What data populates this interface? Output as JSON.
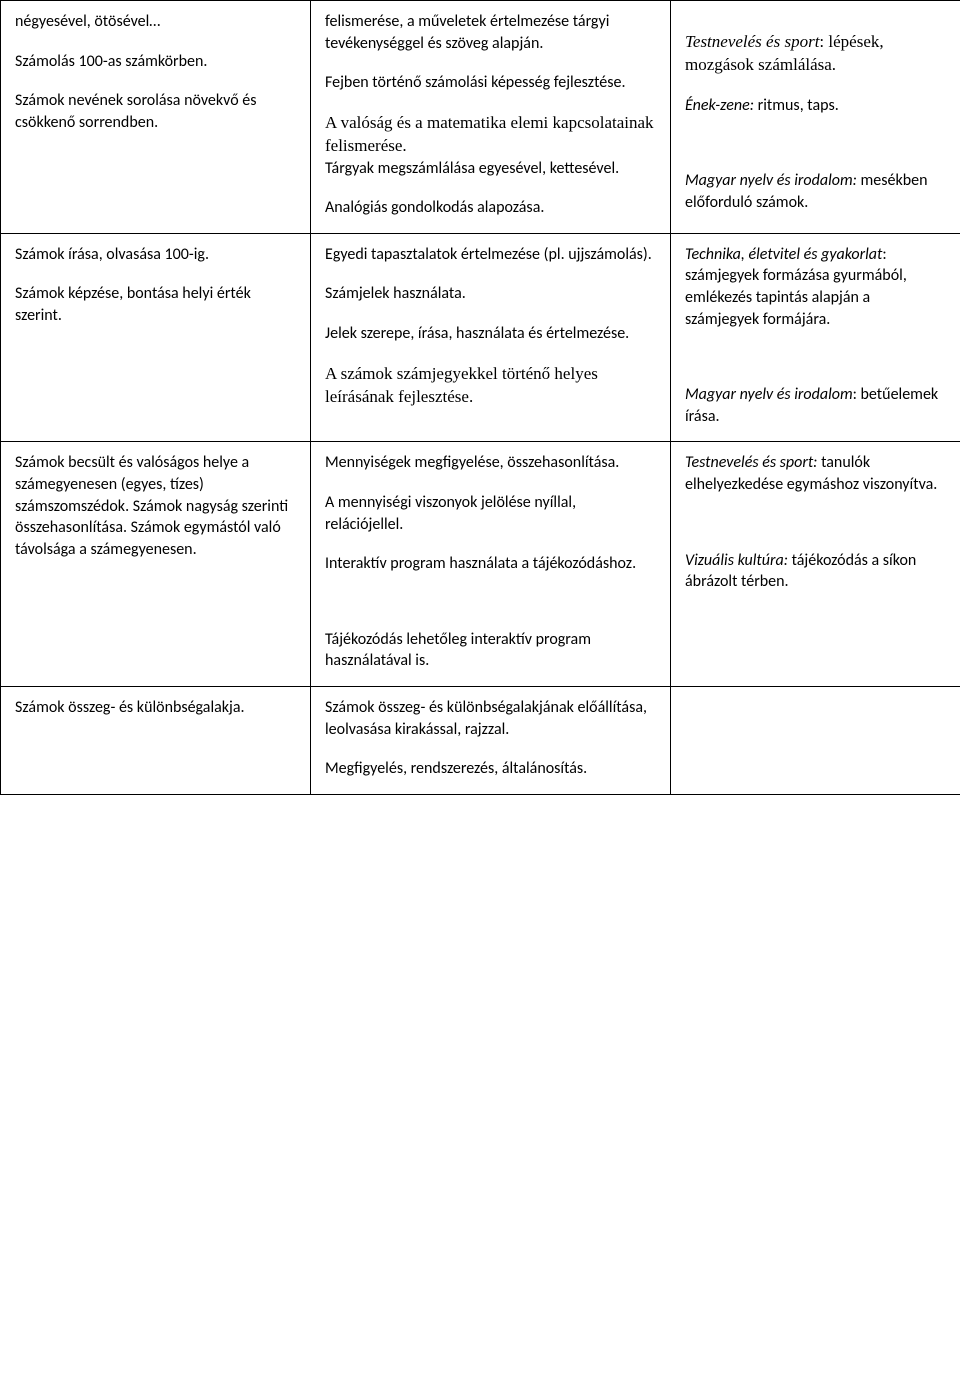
{
  "table": {
    "rows": [
      {
        "col1": [
          {
            "text": "négyesével, ötösével…",
            "cls": ""
          },
          {
            "text": "Számolás 100-as számkörben.",
            "cls": ""
          },
          {
            "text": "Számok nevének sorolása növekvő és csökkenő sorrendben.",
            "cls": ""
          }
        ],
        "col2": [
          {
            "text": "felismerése, a műveletek értelmezése tárgyi tevékenységgel és szöveg alapján.",
            "cls": ""
          },
          {
            "text": "Fejben történő számolási képesség fejlesztése.",
            "cls": ""
          },
          {
            "text": "A valóság és a matematika elemi kapcsolatainak felismerése.",
            "cls": "serif",
            "nomb": true
          },
          {
            "text": "Tárgyak megszámlálása egyesével, kettesével.",
            "cls": ""
          },
          {
            "text": "Analógiás gondolkodás alapozása.",
            "cls": ""
          }
        ],
        "col3": [
          {
            "spacer": "sm"
          },
          {
            "html": true,
            "parts": [
              {
                "text": "Testnevelés és sport",
                "cls": "serif italic"
              },
              {
                "text": ": lépések, mozgások számlálása.",
                "cls": "serif"
              }
            ]
          },
          {
            "html": true,
            "parts": [
              {
                "text": "Ének-zene:",
                "cls": "italic"
              },
              {
                "text": " ritmus, taps.",
                "cls": ""
              }
            ]
          },
          {
            "spacer": "lg"
          },
          {
            "html": true,
            "parts": [
              {
                "text": "Magyar nyelv és irodalom:",
                "cls": "italic"
              },
              {
                "text": " mesékben előforduló számok.",
                "cls": ""
              }
            ]
          }
        ]
      },
      {
        "col1": [
          {
            "text": "Számok írása, olvasása 100-ig.",
            "cls": ""
          },
          {
            "text": "Számok képzése, bontása helyi érték szerint.",
            "cls": ""
          }
        ],
        "col2": [
          {
            "text": "Egyedi tapasztalatok értelmezése (pl. ujjszámolás).",
            "cls": ""
          },
          {
            "text": "Számjelek használata.",
            "cls": ""
          },
          {
            "text": "Jelek szerepe, írása, használata és értelmezése.",
            "cls": ""
          },
          {
            "text": "A számok számjegyekkel történő helyes leírásának fejlesztése.",
            "cls": "serif"
          }
        ],
        "col3": [
          {
            "html": true,
            "parts": [
              {
                "text": "Technika, életvitel és gyakorlat",
                "cls": "italic"
              },
              {
                "text": ": számjegyek formázása gyurmából, emlékezés tapintás alapján a számjegyek formájára.",
                "cls": ""
              }
            ]
          },
          {
            "spacer": "lg"
          },
          {
            "html": true,
            "parts": [
              {
                "text": "Magyar nyelv és irodalom",
                "cls": "italic"
              },
              {
                "text": ": betűelemek írása.",
                "cls": ""
              }
            ]
          }
        ]
      },
      {
        "col1": [
          {
            "text": "Számok becsült és valóságos helye a számegyenesen (egyes, tízes) számszomszédok. Számok nagyság szerinti összehasonlítása. Számok egymástól való távolsága a számegyenesen.",
            "cls": ""
          }
        ],
        "col2": [
          {
            "text": "Mennyiségek megfigyelése, összehasonlítása.",
            "cls": ""
          },
          {
            "text": "A mennyiségi viszonyok jelölése nyíllal, relációjellel.",
            "cls": ""
          },
          {
            "text": "Interaktív program használata a tájékozódáshoz.",
            "cls": ""
          },
          {
            "spacer": "lg"
          },
          {
            "text": "Tájékozódás lehetőleg interaktív program használatával is.",
            "cls": ""
          }
        ],
        "col3": [
          {
            "html": true,
            "parts": [
              {
                "text": "Testnevelés és sport:",
                "cls": "italic"
              },
              {
                "text": " tanulók elhelyezkedése egymáshoz viszonyítva.",
                "cls": ""
              }
            ]
          },
          {
            "spacer": "lg"
          },
          {
            "html": true,
            "parts": [
              {
                "text": "Vizuális kultúra:",
                "cls": "italic"
              },
              {
                "text": " tájékozódás a síkon ábrázolt térben.",
                "cls": ""
              }
            ]
          }
        ]
      },
      {
        "col1": [
          {
            "text": "Számok összeg- és különbségalakja.",
            "cls": ""
          }
        ],
        "col2": [
          {
            "text": "Számok összeg- és különbségalakjának előállítása, leolvasása kirakással, rajzzal.",
            "cls": ""
          },
          {
            "text": "Megfigyelés, rendszerezés, általánosítás.",
            "cls": ""
          }
        ],
        "col3": []
      }
    ]
  }
}
